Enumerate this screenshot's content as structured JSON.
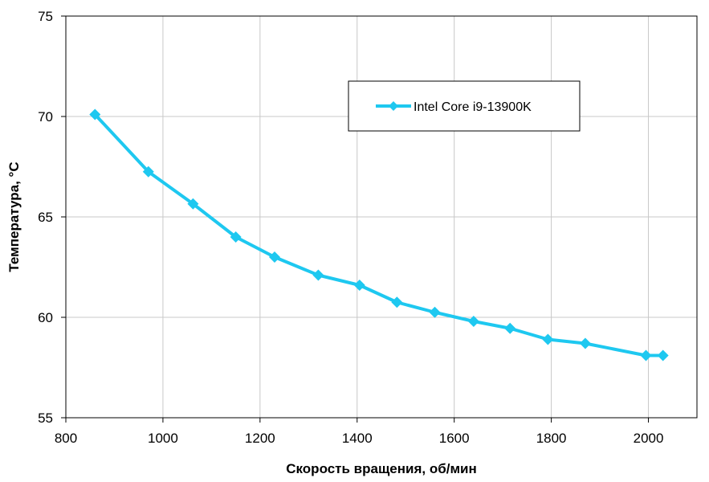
{
  "chart_data": {
    "type": "line",
    "title": "",
    "xlabel": "Скорость вращения, об/мин",
    "ylabel": "Температура, °С",
    "xlim": [
      800,
      2100
    ],
    "ylim": [
      55,
      75
    ],
    "xticks": [
      800,
      1000,
      1200,
      1400,
      1600,
      1800,
      2000
    ],
    "yticks": [
      55,
      60,
      65,
      70,
      75
    ],
    "grid": true,
    "legend_position": "top-right",
    "series": [
      {
        "name": "Intel Core i9-13900K",
        "color": "#1ec8f0",
        "marker": "diamond",
        "x": [
          860,
          970,
          1062,
          1150,
          1230,
          1320,
          1405,
          1482,
          1560,
          1640,
          1715,
          1793,
          1870,
          1995,
          2030
        ],
        "y": [
          70.1,
          67.25,
          65.65,
          64.0,
          63.0,
          62.1,
          61.6,
          60.75,
          60.25,
          59.8,
          59.45,
          58.9,
          58.7,
          58.1,
          58.1
        ]
      }
    ]
  }
}
